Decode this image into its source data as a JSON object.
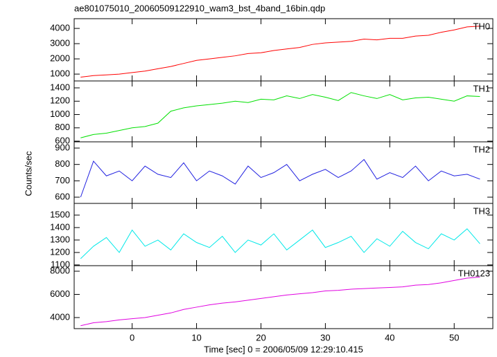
{
  "title": "ae801075010_20060509122910_wam3_bst_4band_16bin.qdp",
  "xlabel": "Time [sec] 0 = 2006/05/09 12:29:10.415",
  "ylabel": "Counts/sec",
  "chart_data": [
    {
      "type": "line",
      "label": "TH0",
      "color": "#ff0000",
      "x": [
        -8,
        -6,
        -4,
        -2,
        0,
        2,
        4,
        6,
        8,
        10,
        12,
        14,
        16,
        18,
        20,
        22,
        24,
        26,
        28,
        30,
        32,
        34,
        36,
        38,
        40,
        42,
        44,
        46,
        48,
        50,
        52,
        54
      ],
      "values": [
        800,
        900,
        950,
        1000,
        1100,
        1200,
        1350,
        1500,
        1700,
        1900,
        2000,
        2100,
        2200,
        2350,
        2400,
        2550,
        2650,
        2750,
        2950,
        3050,
        3100,
        3150,
        3300,
        3250,
        3350,
        3350,
        3500,
        3550,
        3750,
        3900,
        4100,
        4150
      ],
      "xlim": [
        -9,
        56
      ],
      "xticks": [
        0,
        10,
        20,
        30,
        40,
        50
      ],
      "ylim": [
        550,
        4640
      ],
      "yticks": [
        1000,
        2000,
        3000,
        4000
      ]
    },
    {
      "type": "line",
      "label": "TH1",
      "color": "#00e000",
      "x": [
        -8,
        -6,
        -4,
        -2,
        0,
        2,
        4,
        6,
        8,
        10,
        12,
        14,
        16,
        18,
        20,
        22,
        24,
        26,
        28,
        30,
        32,
        34,
        36,
        38,
        40,
        42,
        44,
        46,
        48,
        50,
        52,
        54
      ],
      "values": [
        650,
        700,
        720,
        760,
        800,
        820,
        870,
        1050,
        1100,
        1130,
        1150,
        1170,
        1200,
        1180,
        1230,
        1220,
        1280,
        1240,
        1300,
        1260,
        1210,
        1330,
        1280,
        1240,
        1300,
        1220,
        1250,
        1260,
        1230,
        1200,
        1280,
        1270
      ],
      "xlim": [
        -9,
        56
      ],
      "xticks": [
        0,
        10,
        20,
        30,
        40,
        50
      ],
      "ylim": [
        590,
        1504
      ],
      "yticks": [
        600,
        800,
        1000,
        1200,
        1400
      ]
    },
    {
      "type": "line",
      "label": "TH2",
      "color": "#2020e0",
      "x": [
        -8,
        -6,
        -4,
        -2,
        0,
        2,
        4,
        6,
        8,
        10,
        12,
        14,
        16,
        18,
        20,
        22,
        24,
        26,
        28,
        30,
        32,
        34,
        36,
        38,
        40,
        42,
        44,
        46,
        48,
        50,
        52,
        54
      ],
      "values": [
        600,
        820,
        730,
        760,
        700,
        790,
        740,
        720,
        810,
        700,
        760,
        730,
        680,
        790,
        720,
        750,
        800,
        700,
        740,
        770,
        720,
        760,
        830,
        710,
        750,
        720,
        790,
        700,
        760,
        730,
        740,
        710
      ],
      "xlim": [
        -9,
        56
      ],
      "xticks": [
        0,
        10,
        20,
        30,
        40,
        50
      ],
      "ylim": [
        562,
        938
      ],
      "yticks": [
        600,
        700,
        800,
        900
      ]
    },
    {
      "type": "line",
      "label": "TH3",
      "color": "#00e8e8",
      "x": [
        -8,
        -6,
        -4,
        -2,
        0,
        2,
        4,
        6,
        8,
        10,
        12,
        14,
        16,
        18,
        20,
        22,
        24,
        26,
        28,
        30,
        32,
        34,
        36,
        38,
        40,
        42,
        44,
        46,
        48,
        50,
        52,
        54
      ],
      "values": [
        1150,
        1250,
        1320,
        1200,
        1380,
        1250,
        1300,
        1220,
        1350,
        1280,
        1240,
        1330,
        1200,
        1300,
        1260,
        1350,
        1220,
        1300,
        1380,
        1240,
        1280,
        1330,
        1200,
        1310,
        1250,
        1370,
        1280,
        1230,
        1350,
        1300,
        1390,
        1270
      ],
      "xlim": [
        -9,
        56
      ],
      "xticks": [
        0,
        10,
        20,
        30,
        40,
        50
      ],
      "ylim": [
        1094,
        1594
      ],
      "yticks": [
        1100,
        1200,
        1300,
        1400,
        1500
      ]
    },
    {
      "type": "line",
      "label": "TH0123",
      "color": "#e000e0",
      "x": [
        -8,
        -6,
        -4,
        -2,
        0,
        2,
        4,
        6,
        8,
        10,
        12,
        14,
        16,
        18,
        20,
        22,
        24,
        26,
        28,
        30,
        32,
        34,
        36,
        38,
        40,
        42,
        44,
        46,
        48,
        50,
        52,
        54
      ],
      "values": [
        3300,
        3550,
        3650,
        3800,
        3900,
        4000,
        4200,
        4400,
        4700,
        4900,
        5100,
        5250,
        5350,
        5500,
        5650,
        5800,
        5950,
        6050,
        6150,
        6300,
        6350,
        6450,
        6500,
        6550,
        6600,
        6650,
        6800,
        6850,
        7000,
        7200,
        7400,
        7500
      ],
      "xlim": [
        -9,
        56
      ],
      "xticks": [
        0,
        10,
        20,
        30,
        40,
        50
      ],
      "ylim": [
        3045,
        8478
      ],
      "yticks": [
        4000,
        6000,
        8000
      ]
    }
  ]
}
